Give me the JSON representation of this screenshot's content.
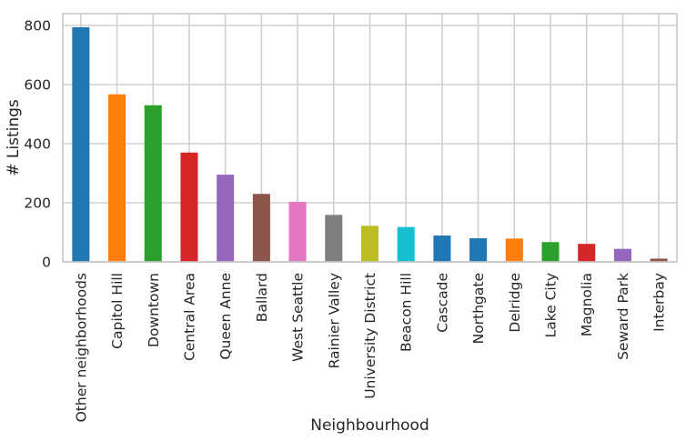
{
  "chart_data": {
    "type": "bar",
    "title": "",
    "xlabel": "Neighbourhood",
    "ylabel": "# Listings",
    "ylim": [
      0,
      840
    ],
    "yticks": [
      0,
      200,
      400,
      600,
      800
    ],
    "grid": true,
    "legend": "none",
    "categories": [
      "Other neighborhoods",
      "Capitol Hill",
      "Downtown",
      "Central Area",
      "Queen Anne",
      "Ballard",
      "West Seattle",
      "Rainier Valley",
      "University District",
      "Beacon Hill",
      "Cascade",
      "Northgate",
      "Delridge",
      "Lake City",
      "Magnolia",
      "Seward Park",
      "Interbay"
    ],
    "values": [
      794,
      567,
      530,
      370,
      295,
      230,
      203,
      159,
      122,
      118,
      89,
      80,
      79,
      67,
      61,
      44,
      11
    ],
    "colors": [
      "#1f77b4",
      "#ff7f0e",
      "#2ca02c",
      "#d62728",
      "#9467bd",
      "#8c564b",
      "#e377c2",
      "#7f7f7f",
      "#bcbd22",
      "#17becf",
      "#1f77b4",
      "#1f77b4",
      "#ff7f0e",
      "#2ca02c",
      "#d62728",
      "#9467bd",
      "#8c564b"
    ]
  }
}
